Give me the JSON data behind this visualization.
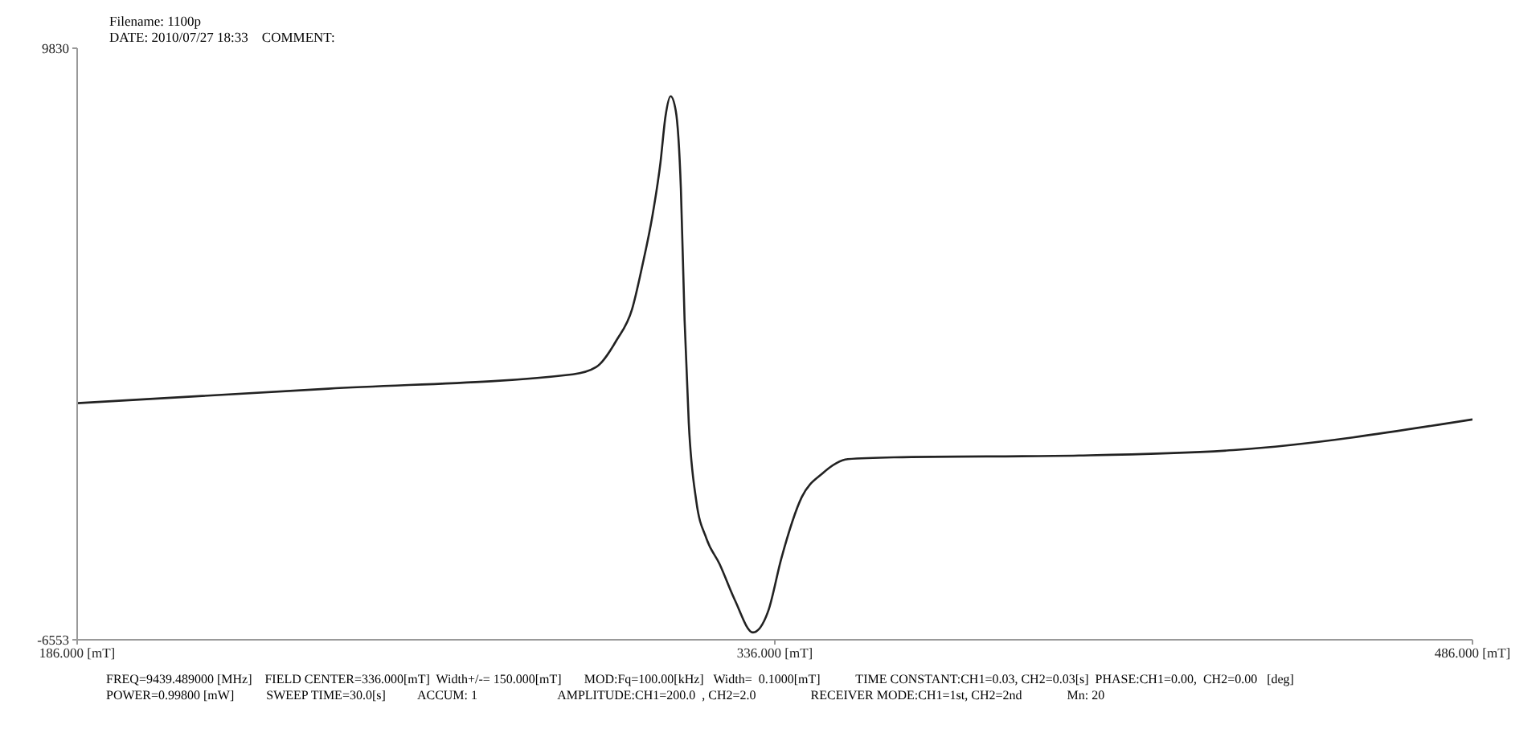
{
  "chart_data": {
    "type": "line",
    "x": [
      186,
      240,
      292.6,
      297.6,
      302.0,
      305.3,
      307.5,
      309.7,
      311.4,
      312.5,
      313.6,
      314.7,
      315.8,
      316.6,
      317.5,
      319.1,
      321.3,
      324.1,
      327.4,
      331.3,
      334.6,
      337.4,
      341.8,
      346.2,
      351.7,
      361.7,
      401.4,
      434.6,
      486
    ],
    "series": [
      {
        "color": "#222222",
        "values": [
          0,
          400,
          800,
          1000,
          1750,
          2600,
          3800,
          5200,
          6650,
          7950,
          8500,
          8100,
          5950,
          2300,
          -550,
          -2700,
          -3750,
          -4450,
          -5450,
          -6350,
          -5750,
          -4300,
          -2600,
          -1950,
          -1550,
          -1500,
          -1450,
          -1300,
          -450
        ]
      }
    ],
    "xlim": [
      186,
      486
    ],
    "xticks": [
      {
        "value": 186,
        "label": "186.000 [mT]"
      },
      {
        "value": 336,
        "label": "336.000 [mT]"
      },
      {
        "value": 486,
        "label": "486.000 [mT]"
      }
    ],
    "ylim": [
      -6553,
      9830
    ],
    "yticks": [
      -6553,
      9830
    ],
    "grid": false,
    "marker": "none",
    "line_style": "solid",
    "annotations": [
      "Filename: 1100p",
      "DATE: 2010/07/27 18:33    COMMENT:",
      "FREQ=9439.489000 [MHz]    FIELD CENTER=336.000[mT]  Width+/-= 150.000[mT]       MOD:Fq=100.00[kHz]   Width=  0.1000[mT]           TIME CONSTANT:CH1=0.03, CH2=0.03[s]  PHASE:CH1=0.00,  CH2=0.00   [deg]",
      "POWER=0.99800 [mW]          SWEEP TIME=30.0[s]          ACCUM: 1                         AMPLITUDE:CH1=200.0  , CH2=2.0                 RECEIVER MODE:CH1=1st, CH2=2nd              Mn: 20"
    ]
  }
}
